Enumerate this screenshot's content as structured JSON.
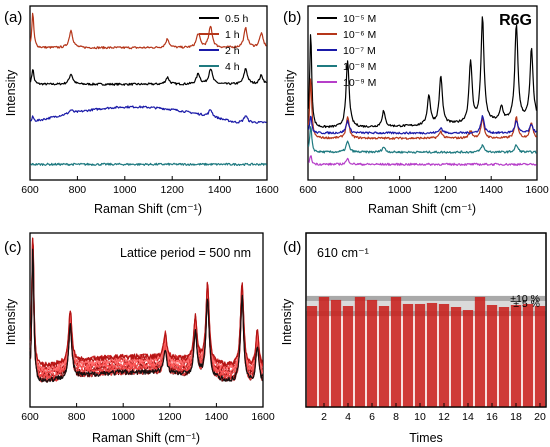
{
  "chart_data": [
    {
      "panel": "(a)",
      "type": "line",
      "xlabel": "Raman Shift (cm⁻¹)",
      "ylabel": "Intensity",
      "xlim": [
        600,
        1600
      ],
      "xticks": [
        "600",
        "800",
        "1000",
        "1200",
        "1400",
        "1600"
      ],
      "legend_position": "top-right",
      "series": [
        {
          "name": "0.5 h",
          "color": "#000000",
          "offset": 0.55,
          "baseline": "flat",
          "peaks": [
            [
              612,
              0.09
            ],
            [
              773,
              0.06
            ],
            [
              1180,
              0.04
            ],
            [
              1310,
              0.06
            ],
            [
              1362,
              0.09
            ],
            [
              1510,
              0.09
            ],
            [
              1576,
              0.05
            ]
          ]
        },
        {
          "name": "1 h",
          "color": "#b5361a",
          "offset": 0.76,
          "baseline": "flat",
          "peaks": [
            [
              612,
              0.2
            ],
            [
              773,
              0.1
            ],
            [
              1180,
              0.05
            ],
            [
              1310,
              0.08
            ],
            [
              1362,
              0.12
            ],
            [
              1510,
              0.11
            ],
            [
              1576,
              0.08
            ]
          ]
        },
        {
          "name": "2 h",
          "color": "#1a1aa8",
          "offset": 0.33,
          "baseline": "hump",
          "peaks": [
            [
              612,
              0.03
            ],
            [
              773,
              0.02
            ],
            [
              1362,
              0.04
            ],
            [
              1510,
              0.04
            ]
          ]
        },
        {
          "name": "4 h",
          "color": "#1f7a80",
          "offset": 0.09,
          "baseline": "flat",
          "peaks": []
        }
      ]
    },
    {
      "panel": "(b)",
      "type": "line",
      "title": "R6G",
      "xlabel": "Raman Shift (cm⁻¹)",
      "ylabel": "Intensity",
      "xlim": [
        600,
        1600
      ],
      "xticks": [
        "600",
        "800",
        "1000",
        "1200",
        "1400",
        "1600"
      ],
      "legend_position": "top-left",
      "series": [
        {
          "name": "10⁻⁵ M",
          "color": "#000000",
          "offset": 0.3,
          "baseline": "rise",
          "peaks": [
            [
              612,
              0.55
            ],
            [
              773,
              0.38
            ],
            [
              930,
              0.09
            ],
            [
              1128,
              0.17
            ],
            [
              1180,
              0.28
            ],
            [
              1310,
              0.35
            ],
            [
              1362,
              0.6
            ],
            [
              1445,
              0.08
            ],
            [
              1510,
              0.55
            ],
            [
              1576,
              0.4
            ]
          ]
        },
        {
          "name": "10⁻⁶ M",
          "color": "#b5361a",
          "offset": 0.24,
          "baseline": "flat",
          "peaks": [
            [
              612,
              0.35
            ],
            [
              773,
              0.12
            ],
            [
              1180,
              0.04
            ],
            [
              1310,
              0.04
            ],
            [
              1362,
              0.11
            ],
            [
              1510,
              0.12
            ],
            [
              1576,
              0.09
            ]
          ]
        },
        {
          "name": "10⁻⁷ M",
          "color": "#1a1aa8",
          "offset": 0.27,
          "baseline": "flat",
          "peaks": [
            [
              612,
              0.1
            ],
            [
              773,
              0.07
            ],
            [
              1180,
              0.03
            ],
            [
              1362,
              0.1
            ],
            [
              1510,
              0.07
            ],
            [
              1576,
              0.05
            ]
          ]
        },
        {
          "name": "10⁻⁸ M",
          "color": "#1f7a80",
          "offset": 0.16,
          "baseline": "flat",
          "peaks": [
            [
              612,
              0.15
            ],
            [
              773,
              0.06
            ],
            [
              930,
              0.03
            ],
            [
              1362,
              0.04
            ],
            [
              1510,
              0.04
            ]
          ]
        },
        {
          "name": "10⁻⁹ M",
          "color": "#b63fc9",
          "offset": 0.09,
          "baseline": "flat",
          "peaks": [
            [
              612,
              0.05
            ],
            [
              773,
              0.03
            ]
          ]
        }
      ]
    },
    {
      "panel": "(c)",
      "type": "line",
      "annotation": "Lattice period = 500 nm",
      "xlabel": "Raman Shift (cm⁻¹)",
      "ylabel": "Intensity",
      "xlim": [
        600,
        1600
      ],
      "xticks": [
        "600",
        "800",
        "1000",
        "1200",
        "1400",
        "1600"
      ],
      "note": "many overlaid repeat spectra in shades of red",
      "peaks": [
        [
          612,
          0.8
        ],
        [
          773,
          0.3
        ],
        [
          1180,
          0.14
        ],
        [
          1310,
          0.26
        ],
        [
          1362,
          0.46
        ],
        [
          1510,
          0.5
        ],
        [
          1576,
          0.22
        ]
      ]
    },
    {
      "panel": "(d)",
      "type": "bar",
      "title": "610 cm⁻¹",
      "xlabel": "Times",
      "ylabel": "Intensity",
      "xlim": [
        0.5,
        20.5
      ],
      "xticks": [
        "2",
        "4",
        "6",
        "8",
        "10",
        "12",
        "14",
        "16",
        "18",
        "20"
      ],
      "categories": [
        1,
        2,
        3,
        4,
        5,
        6,
        7,
        8,
        9,
        10,
        11,
        12,
        13,
        14,
        15,
        16,
        17,
        18,
        19,
        20
      ],
      "values": [
        100,
        109,
        106,
        100,
        109,
        106,
        100,
        109,
        102,
        102,
        103,
        102,
        99,
        96,
        109,
        101,
        99,
        101,
        102,
        100
      ],
      "band_labels": [
        "±10 %",
        "± 5 %"
      ],
      "color": "#c8201c"
    }
  ],
  "labels": {
    "panel_a": "(a)",
    "panel_b": "(b)",
    "panel_c": "(c)",
    "panel_d": "(d)",
    "title_b": "R6G",
    "annot_c": "Lattice period = 500 nm",
    "title_d": "610 cm⁻¹",
    "band_10": "±10 %",
    "band_5": "± 5 %",
    "xlabel_raman": "Raman Shift (cm⁻¹)",
    "xlabel_times": "Times",
    "ylabel": "Intensity"
  }
}
